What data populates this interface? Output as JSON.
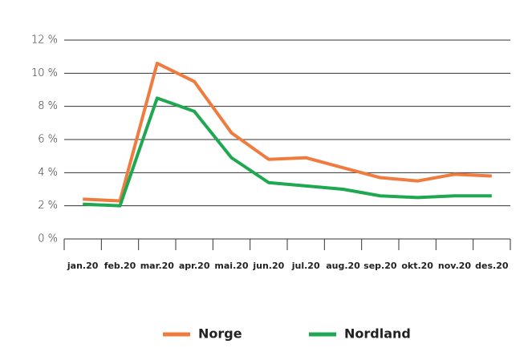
{
  "chart_data": {
    "type": "line",
    "categories": [
      "jan.20",
      "feb.20",
      "mar.20",
      "apr.20",
      "mai.20",
      "jun.20",
      "jul.20",
      "aug.20",
      "sep.20",
      "okt.20",
      "nov.20",
      "des.20"
    ],
    "series": [
      {
        "name": "Norge",
        "color": "#f07b3f",
        "values": [
          2.4,
          2.3,
          10.6,
          9.5,
          6.4,
          4.8,
          4.9,
          4.3,
          3.7,
          3.5,
          3.9,
          3.8
        ]
      },
      {
        "name": "Nordland",
        "color": "#1fa751",
        "values": [
          2.1,
          2.0,
          8.5,
          7.7,
          4.9,
          3.4,
          3.2,
          3.0,
          2.6,
          2.5,
          2.6,
          2.6
        ]
      }
    ],
    "ylim": [
      0,
      12
    ],
    "yticks": [
      {
        "value": 0,
        "label": "0 %"
      },
      {
        "value": 2,
        "label": "2 %"
      },
      {
        "value": 4,
        "label": "4 %"
      },
      {
        "value": 6,
        "label": "6 %"
      },
      {
        "value": 8,
        "label": "8 %"
      },
      {
        "value": 10,
        "label": "10 %"
      },
      {
        "value": 12,
        "label": "12 %"
      }
    ],
    "grid": true,
    "legend": "bottom"
  }
}
